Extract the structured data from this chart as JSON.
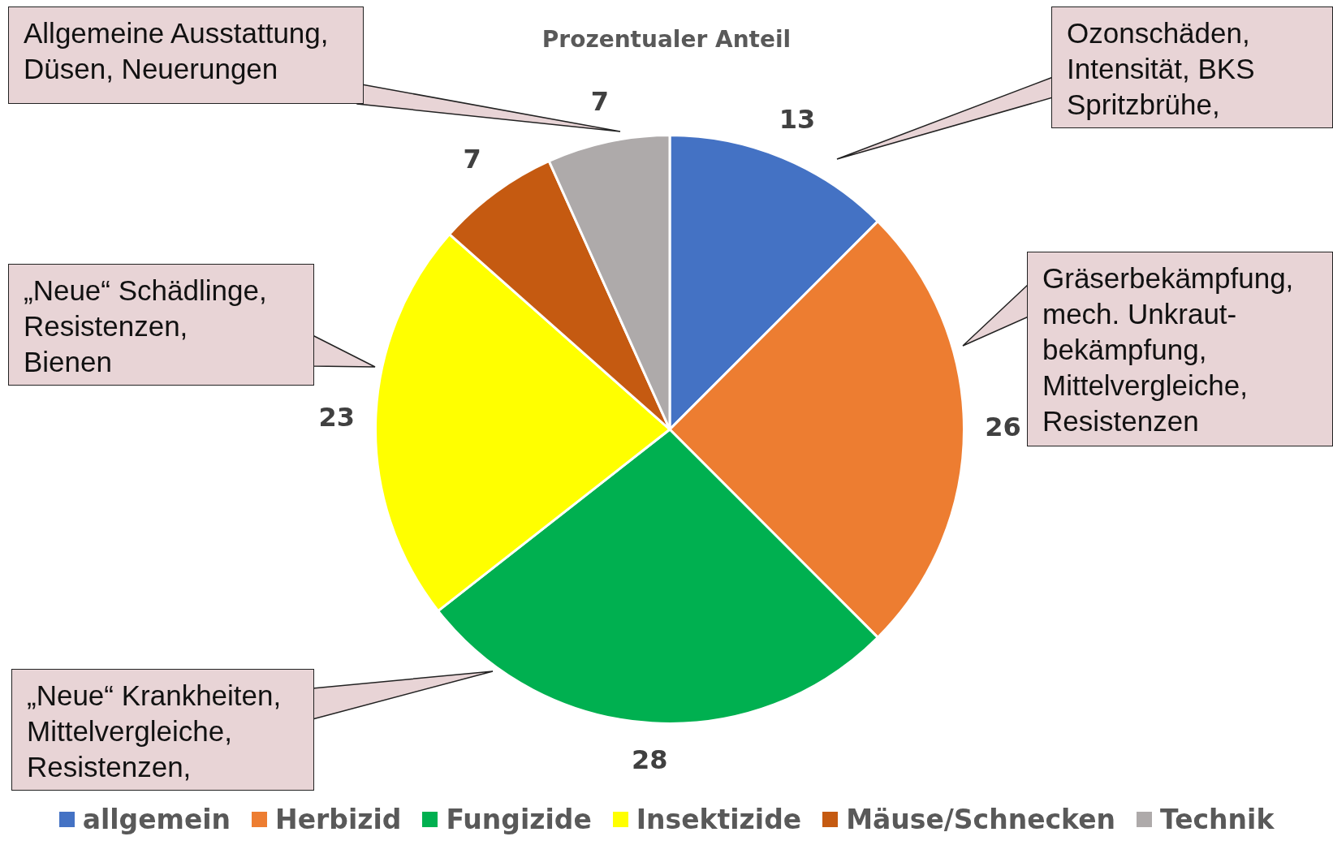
{
  "chart_data": {
    "type": "pie",
    "title": "Prozentualer Anteil",
    "categories": [
      "allgemein",
      "Herbizid",
      "Fungizide",
      "Insektizide",
      "Mäuse/Schnecken",
      "Technik"
    ],
    "values": [
      13,
      26,
      28,
      23,
      7,
      7
    ],
    "colors": [
      "#4472c4",
      "#ed7d31",
      "#00b050",
      "#ffff00",
      "#c55a11",
      "#aeaaaa"
    ],
    "data_labels": true,
    "legend": "bottom",
    "annotations": [
      "Allgemeine Ausstattung,\nDüsen, Neuerungen",
      "Ozonschäden,\nIntensität, BKS\nSpritzbrühe,",
      "Gräserbekämpfung,\nmech. Unkraut-\nbekämpfung,\nMittelvergleiche,\nResistenzen",
      "„Neue“ Schädlinge,\nResistenzen,\nBienen",
      "„Neue“ Krankheiten,\nMittelvergleiche,\nResistenzen,"
    ]
  }
}
